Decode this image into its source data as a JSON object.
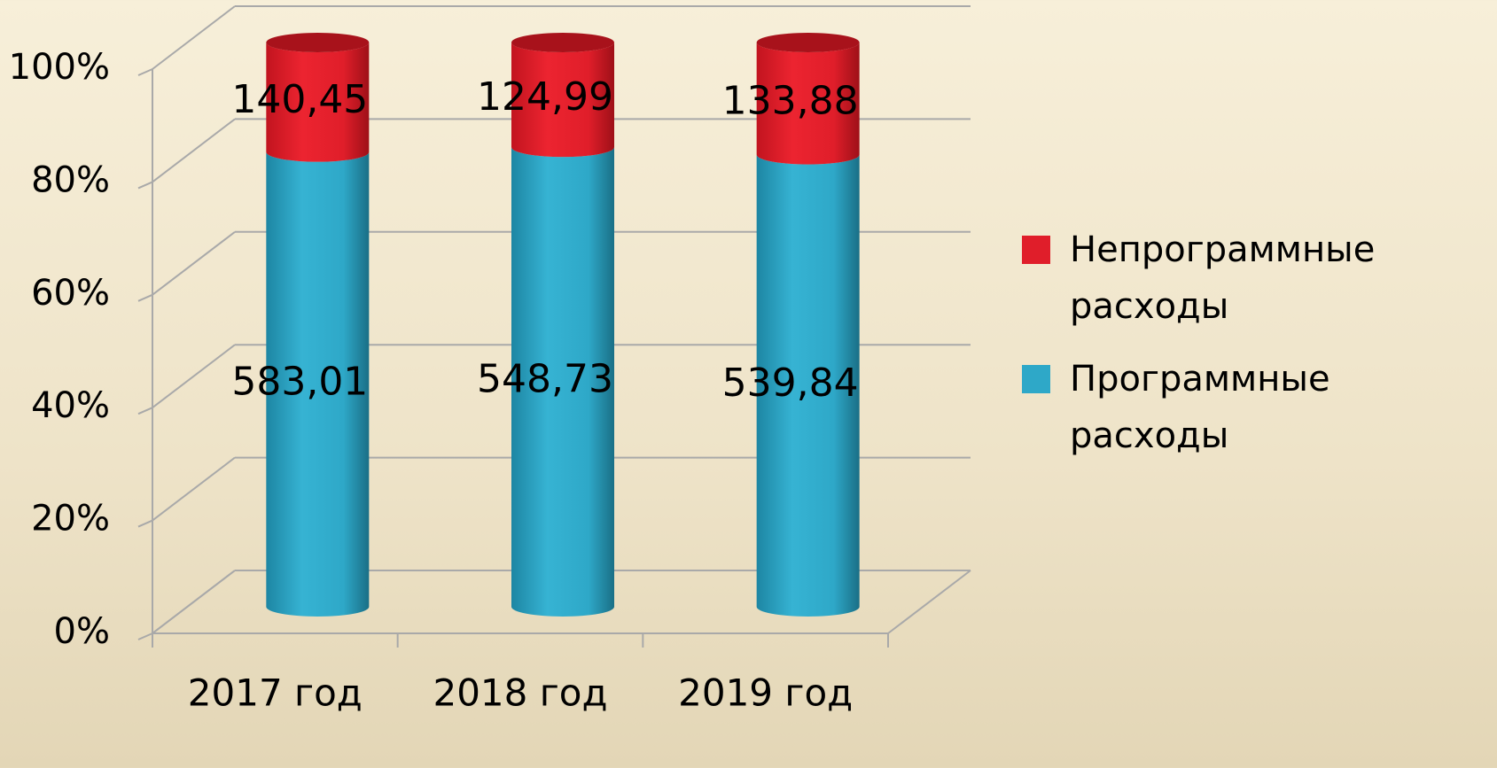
{
  "chart_data": {
    "type": "bar",
    "stacked": "percent",
    "categories": [
      "2017 год",
      "2018 год",
      "2019 год"
    ],
    "series": [
      {
        "name": "Программные расходы",
        "color": "#2ea8c8",
        "values": [
          583.01,
          548.73,
          539.84
        ],
        "value_labels": [
          "583,01",
          "548,73",
          "539,84"
        ]
      },
      {
        "name": "Непрограммные расходы",
        "color": "#e01e2a",
        "values": [
          140.45,
          124.99,
          133.88
        ],
        "value_labels": [
          "140,45",
          "124,99",
          "133,88"
        ]
      }
    ],
    "ylim": [
      0,
      100
    ],
    "yticks": [
      {
        "value": 0,
        "label": "0%"
      },
      {
        "value": 20,
        "label": "20%"
      },
      {
        "value": 40,
        "label": "40%"
      },
      {
        "value": 60,
        "label": "60%"
      },
      {
        "value": 80,
        "label": "80%"
      },
      {
        "value": 100,
        "label": "100%"
      }
    ],
    "grid": true,
    "legend": "right"
  }
}
